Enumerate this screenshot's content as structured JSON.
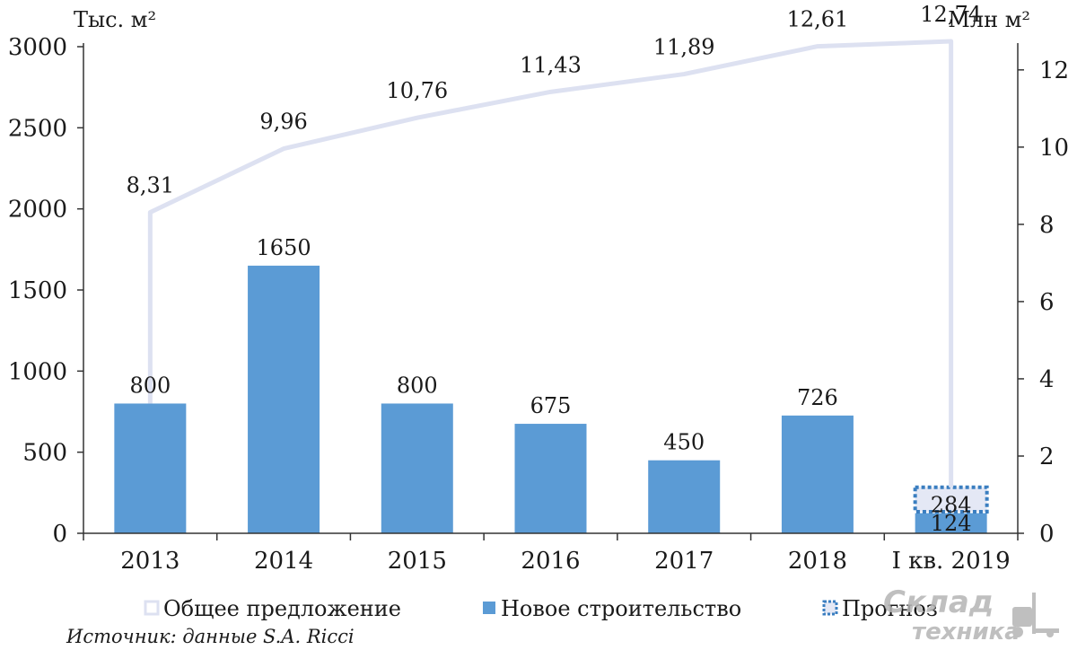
{
  "chart_data": {
    "type": "bar",
    "categories": [
      "2013",
      "2014",
      "2015",
      "2016",
      "2017",
      "2018",
      "I кв. 2019"
    ],
    "series": [
      {
        "name": "Новое строительство",
        "type": "bar",
        "axis": "left",
        "values": [
          800,
          1650,
          800,
          675,
          450,
          726,
          124
        ],
        "labels": [
          "800",
          "1650",
          "800",
          "675",
          "450",
          "726",
          "124"
        ]
      },
      {
        "name": "Прогноз",
        "type": "bar-forecast",
        "axis": "left",
        "values": [
          null,
          null,
          null,
          null,
          null,
          null,
          284
        ],
        "labels": [
          "",
          "",
          "",
          "",
          "",
          "",
          "284"
        ]
      },
      {
        "name": "Общее предложение",
        "type": "line",
        "axis": "right",
        "values": [
          8.31,
          9.96,
          10.76,
          11.43,
          11.89,
          12.61,
          12.74
        ],
        "labels": [
          "8,31",
          "9,96",
          "10,76",
          "11,43",
          "11,89",
          "12,61",
          "12,74"
        ]
      }
    ],
    "ylabel": "Тыс. м²",
    "ylabel_right": "Млн м²",
    "ylim": [
      0,
      3000
    ],
    "ylim_right": [
      0,
      12.74
    ],
    "yticks": [
      "0",
      "500",
      "1000",
      "1500",
      "2000",
      "2500",
      "3000"
    ],
    "yticks_right": [
      "0",
      "2",
      "4",
      "6",
      "8",
      "10",
      "12"
    ],
    "grid": false,
    "legend_position": "bottom",
    "colors": {
      "bar": "#5b9bd5",
      "line": "#dde1f1",
      "forecast_border": "#3a7ec0",
      "forecast_fill": "#e4e8f5"
    }
  },
  "legend": {
    "items": [
      {
        "label": "Общее предложение"
      },
      {
        "label": "Новое строительство"
      },
      {
        "label": "Прогноз"
      }
    ]
  },
  "source": "Источник: данные S.A. Ricci",
  "watermark": {
    "line1": "Склад",
    "line2": "техника"
  }
}
